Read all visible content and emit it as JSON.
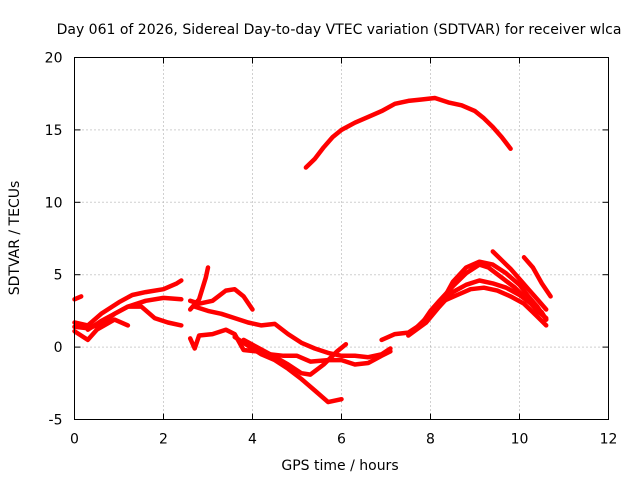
{
  "chart_data": {
    "type": "line",
    "title": "Day 061 of 2026, Sidereal Day-to-day VTEC variation (SDTVAR) for receiver wlca",
    "xlabel": "GPS time / hours",
    "ylabel": "SDTVAR / TECUs",
    "xlim": [
      0,
      12
    ],
    "ylim": [
      -5,
      20
    ],
    "xticks": [
      0,
      2,
      4,
      6,
      8,
      10,
      12
    ],
    "yticks": [
      -5,
      0,
      5,
      10,
      15,
      20
    ],
    "grid": true,
    "color": "#ff0000",
    "series": [
      {
        "name": "s1",
        "points": [
          [
            5.2,
            12.4
          ],
          [
            5.4,
            13.0
          ],
          [
            5.6,
            13.8
          ],
          [
            5.8,
            14.5
          ],
          [
            6.0,
            15.0
          ],
          [
            6.3,
            15.5
          ],
          [
            6.6,
            15.9
          ],
          [
            6.9,
            16.3
          ],
          [
            7.2,
            16.8
          ],
          [
            7.5,
            17.0
          ],
          [
            7.8,
            17.1
          ],
          [
            8.1,
            17.2
          ],
          [
            8.4,
            16.9
          ],
          [
            8.7,
            16.7
          ],
          [
            9.0,
            16.3
          ],
          [
            9.2,
            15.8
          ],
          [
            9.4,
            15.2
          ],
          [
            9.6,
            14.5
          ],
          [
            9.8,
            13.7
          ]
        ]
      },
      {
        "name": "s2",
        "points": [
          [
            0.0,
            3.3
          ],
          [
            0.15,
            3.5
          ]
        ]
      },
      {
        "name": "s3",
        "points": [
          [
            0.0,
            1.7
          ],
          [
            0.3,
            1.5
          ],
          [
            0.6,
            2.3
          ],
          [
            1.0,
            3.1
          ],
          [
            1.3,
            3.6
          ],
          [
            1.6,
            3.8
          ],
          [
            2.0,
            4.0
          ],
          [
            2.3,
            4.4
          ],
          [
            2.4,
            4.6
          ]
        ]
      },
      {
        "name": "s4",
        "points": [
          [
            0.0,
            1.4
          ],
          [
            0.3,
            1.3
          ],
          [
            0.6,
            1.6
          ],
          [
            0.9,
            2.3
          ],
          [
            1.2,
            2.8
          ],
          [
            1.6,
            3.2
          ],
          [
            2.0,
            3.4
          ],
          [
            2.4,
            3.3
          ]
        ]
      },
      {
        "name": "s5",
        "points": [
          [
            0.0,
            1.1
          ],
          [
            0.3,
            0.5
          ],
          [
            0.5,
            1.2
          ],
          [
            0.9,
            1.9
          ],
          [
            1.2,
            1.5
          ]
        ]
      },
      {
        "name": "s6",
        "points": [
          [
            0.3,
            1.2
          ],
          [
            0.6,
            1.8
          ],
          [
            0.9,
            2.3
          ],
          [
            1.2,
            2.8
          ],
          [
            1.5,
            2.8
          ],
          [
            1.8,
            2.0
          ],
          [
            2.1,
            1.7
          ],
          [
            2.4,
            1.5
          ]
        ]
      },
      {
        "name": "s7",
        "points": [
          [
            2.6,
            2.6
          ],
          [
            2.8,
            3.3
          ],
          [
            2.95,
            4.8
          ],
          [
            3.0,
            5.5
          ]
        ]
      },
      {
        "name": "s8",
        "points": [
          [
            2.6,
            3.2
          ],
          [
            2.8,
            3.0
          ],
          [
            3.1,
            3.2
          ],
          [
            3.4,
            3.9
          ],
          [
            3.6,
            4.0
          ],
          [
            3.8,
            3.5
          ],
          [
            4.0,
            2.6
          ]
        ]
      },
      {
        "name": "s9",
        "points": [
          [
            2.7,
            2.8
          ],
          [
            3.0,
            2.5
          ],
          [
            3.3,
            2.3
          ],
          [
            3.6,
            2.0
          ],
          [
            3.9,
            1.7
          ],
          [
            4.2,
            1.5
          ],
          [
            4.5,
            1.6
          ],
          [
            4.8,
            0.9
          ],
          [
            5.1,
            0.3
          ],
          [
            5.4,
            -0.1
          ],
          [
            5.7,
            -0.4
          ],
          [
            6.0,
            -0.6
          ],
          [
            6.3,
            -0.6
          ],
          [
            6.6,
            -0.7
          ],
          [
            6.9,
            -0.5
          ],
          [
            7.1,
            -0.1
          ]
        ]
      },
      {
        "name": "s10",
        "points": [
          [
            2.6,
            0.6
          ],
          [
            2.7,
            -0.1
          ],
          [
            2.8,
            0.8
          ],
          [
            3.1,
            0.9
          ],
          [
            3.4,
            1.2
          ],
          [
            3.6,
            0.9
          ],
          [
            3.8,
            -0.2
          ],
          [
            4.1,
            -0.3
          ],
          [
            4.4,
            -0.5
          ],
          [
            4.7,
            -0.6
          ],
          [
            5.0,
            -0.6
          ],
          [
            5.3,
            -1.0
          ],
          [
            5.7,
            -0.9
          ],
          [
            6.0,
            -0.9
          ],
          [
            6.3,
            -1.2
          ],
          [
            6.6,
            -1.1
          ],
          [
            6.9,
            -0.6
          ],
          [
            7.1,
            -0.3
          ]
        ]
      },
      {
        "name": "s11",
        "points": [
          [
            3.8,
            0.5
          ],
          [
            4.1,
            0.0
          ],
          [
            4.4,
            -0.5
          ],
          [
            4.8,
            -1.2
          ],
          [
            5.1,
            -1.8
          ],
          [
            5.3,
            -1.9
          ],
          [
            5.6,
            -1.2
          ],
          [
            5.9,
            -0.3
          ],
          [
            6.1,
            0.2
          ]
        ]
      },
      {
        "name": "s12",
        "points": [
          [
            3.6,
            0.7
          ],
          [
            3.9,
            0.1
          ],
          [
            4.2,
            -0.5
          ],
          [
            4.5,
            -0.9
          ],
          [
            4.8,
            -1.5
          ],
          [
            5.1,
            -2.2
          ],
          [
            5.4,
            -3.0
          ],
          [
            5.7,
            -3.8
          ],
          [
            6.0,
            -3.6
          ]
        ]
      },
      {
        "name": "s13",
        "points": [
          [
            6.9,
            0.5
          ],
          [
            7.2,
            0.9
          ],
          [
            7.5,
            1.0
          ],
          [
            7.8,
            1.6
          ],
          [
            8.0,
            2.5
          ],
          [
            8.2,
            3.2
          ],
          [
            8.5,
            4.2
          ],
          [
            8.8,
            5.1
          ],
          [
            9.1,
            5.7
          ],
          [
            9.3,
            5.5
          ],
          [
            9.6,
            4.8
          ],
          [
            9.9,
            4.1
          ],
          [
            10.2,
            3.2
          ],
          [
            10.4,
            2.5
          ],
          [
            10.6,
            2.0
          ]
        ]
      },
      {
        "name": "s14",
        "points": [
          [
            7.5,
            0.8
          ],
          [
            7.9,
            1.7
          ],
          [
            8.2,
            2.8
          ],
          [
            8.5,
            3.8
          ],
          [
            8.8,
            4.3
          ],
          [
            9.1,
            4.6
          ],
          [
            9.4,
            4.4
          ],
          [
            9.7,
            4.1
          ],
          [
            10.0,
            3.6
          ],
          [
            10.3,
            2.9
          ],
          [
            10.5,
            2.4
          ],
          [
            10.6,
            1.9
          ]
        ]
      },
      {
        "name": "s15",
        "points": [
          [
            7.7,
            1.4
          ],
          [
            8.0,
            2.3
          ],
          [
            8.3,
            3.2
          ],
          [
            8.6,
            3.6
          ],
          [
            8.9,
            4.0
          ],
          [
            9.2,
            4.1
          ],
          [
            9.5,
            3.9
          ],
          [
            9.8,
            3.5
          ],
          [
            10.1,
            3.0
          ],
          [
            10.3,
            2.4
          ],
          [
            10.5,
            1.8
          ],
          [
            10.6,
            1.5
          ]
        ]
      },
      {
        "name": "s16",
        "points": [
          [
            8.2,
            2.8
          ],
          [
            8.5,
            4.5
          ],
          [
            8.8,
            5.5
          ],
          [
            9.1,
            5.9
          ],
          [
            9.4,
            5.7
          ],
          [
            9.7,
            5.1
          ],
          [
            10.0,
            4.3
          ],
          [
            10.2,
            3.5
          ],
          [
            10.4,
            2.8
          ],
          [
            10.6,
            1.9
          ]
        ]
      },
      {
        "name": "s17",
        "points": [
          [
            9.4,
            6.6
          ],
          [
            9.6,
            6.0
          ],
          [
            9.8,
            5.4
          ],
          [
            10.0,
            4.7
          ],
          [
            10.2,
            4.0
          ],
          [
            10.4,
            3.3
          ],
          [
            10.6,
            2.6
          ]
        ]
      },
      {
        "name": "s18",
        "points": [
          [
            10.1,
            6.2
          ],
          [
            10.3,
            5.5
          ],
          [
            10.5,
            4.4
          ],
          [
            10.7,
            3.5
          ]
        ]
      }
    ]
  }
}
